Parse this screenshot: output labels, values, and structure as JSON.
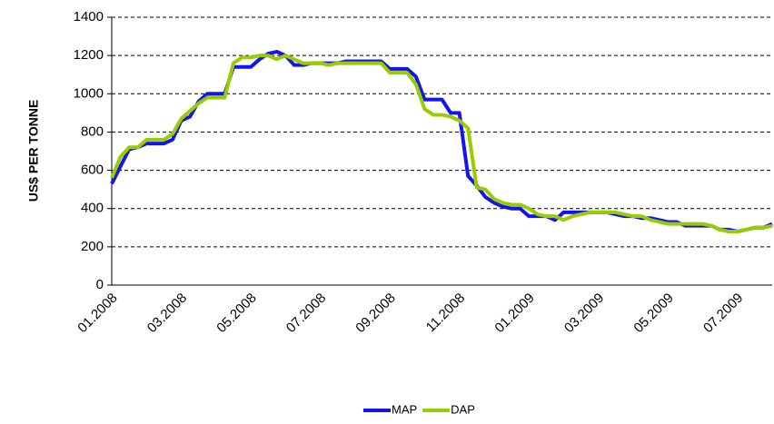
{
  "chart_data": {
    "type": "line",
    "y_label": "US$ PER TONNE",
    "categories": [
      "01.2008",
      null,
      null,
      null,
      null,
      null,
      null,
      null,
      "03.2008",
      null,
      null,
      null,
      null,
      null,
      null,
      null,
      "05.2008",
      null,
      null,
      null,
      null,
      null,
      null,
      null,
      "07.2008",
      null,
      null,
      null,
      null,
      null,
      null,
      null,
      "09.2008",
      null,
      null,
      null,
      null,
      null,
      null,
      null,
      "11.2008",
      null,
      null,
      null,
      null,
      null,
      null,
      null,
      "01.2009",
      null,
      null,
      null,
      null,
      null,
      null,
      null,
      "03.2009",
      null,
      null,
      null,
      null,
      null,
      null,
      null,
      "05.2009",
      null,
      null,
      null,
      null,
      null,
      null,
      null,
      "07.2009",
      null,
      null,
      null,
      null
    ],
    "series": [
      {
        "name": "MAP",
        "color": "#1414ee",
        "values": [
          530,
          620,
          710,
          720,
          740,
          740,
          740,
          760,
          860,
          880,
          960,
          1000,
          1000,
          1000,
          1140,
          1140,
          1140,
          1180,
          1210,
          1220,
          1200,
          1150,
          1150,
          1160,
          1160,
          1160,
          1160,
          1170,
          1170,
          1170,
          1170,
          1170,
          1130,
          1130,
          1130,
          1090,
          970,
          970,
          970,
          900,
          900,
          570,
          520,
          460,
          430,
          410,
          400,
          400,
          360,
          360,
          360,
          340,
          380,
          380,
          380,
          380,
          380,
          380,
          370,
          360,
          360,
          350,
          350,
          340,
          330,
          330,
          310,
          310,
          310,
          310,
          290,
          290,
          280,
          290,
          300,
          300,
          320
        ]
      },
      {
        "name": "DAP",
        "color": "#99cc00",
        "values": [
          560,
          670,
          720,
          720,
          760,
          760,
          760,
          790,
          870,
          910,
          950,
          980,
          980,
          980,
          1160,
          1190,
          1190,
          1200,
          1200,
          1180,
          1200,
          1180,
          1160,
          1160,
          1160,
          1150,
          1160,
          1160,
          1160,
          1160,
          1160,
          1160,
          1110,
          1110,
          1110,
          1050,
          920,
          890,
          890,
          880,
          860,
          820,
          510,
          500,
          450,
          430,
          420,
          420,
          400,
          370,
          360,
          360,
          340,
          360,
          370,
          380,
          380,
          380,
          380,
          370,
          360,
          360,
          340,
          330,
          320,
          320,
          320,
          320,
          320,
          310,
          290,
          280,
          280,
          290,
          300,
          300,
          310
        ]
      }
    ],
    "ylim": [
      0,
      1400
    ],
    "yticks": [
      0,
      200,
      400,
      600,
      800,
      1000,
      1200,
      1400
    ],
    "grid": true,
    "legend": "bottom"
  }
}
